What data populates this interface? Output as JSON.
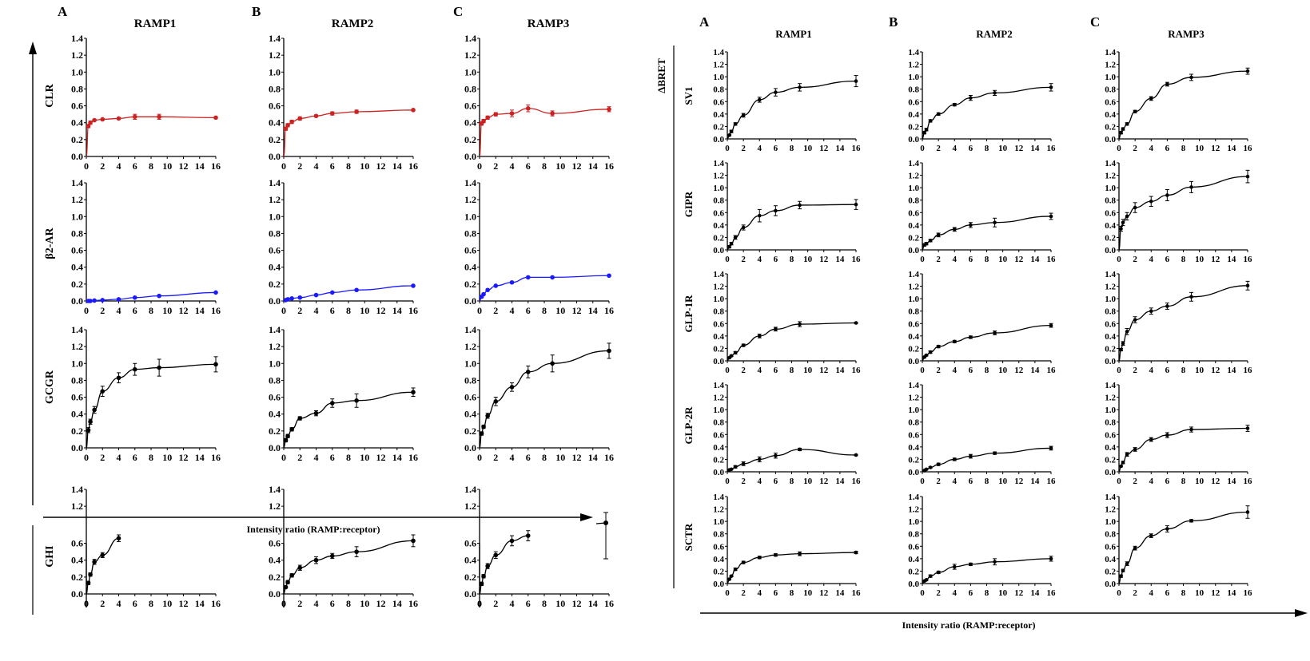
{
  "chart_data": [
    {
      "type": "line",
      "panel_letters": [
        "A",
        "B",
        "C"
      ],
      "columns": [
        "RAMP1",
        "RAMP2",
        "RAMP3"
      ],
      "rows": [
        "CLR",
        "β2-AR",
        "GCGR",
        "",
        "GHI"
      ],
      "xlabel": "Intensity ratio (RAMP:receptor)",
      "ylabel": "",
      "xlim": [
        0,
        16
      ],
      "ylim": [
        0,
        1.4
      ],
      "x_ticks": [
        0,
        2,
        4,
        6,
        8,
        10,
        12,
        14,
        16
      ],
      "y_ticks": [
        0.0,
        0.2,
        0.4,
        0.6,
        0.8,
        1.0,
        1.2,
        1.4
      ],
      "colors": {
        "CLR": "#cc2222",
        "β2-AR": "#1a1aff",
        "GCGR": "#000000",
        "GHI": "#000000"
      },
      "x": [
        0,
        0.25,
        0.5,
        1,
        2,
        4,
        6,
        9,
        16
      ],
      "panels": [
        {
          "row": "CLR",
          "col": "RAMP1",
          "values": [
            0,
            0.36,
            0.4,
            0.43,
            0.44,
            0.45,
            0.47,
            0.47,
            0.46
          ],
          "err": [
            0,
            0.02,
            0.02,
            0.01,
            0.01,
            0.01,
            0.03,
            0.03,
            0.01
          ]
        },
        {
          "row": "CLR",
          "col": "RAMP2",
          "values": [
            0,
            0.33,
            0.37,
            0.41,
            0.45,
            0.48,
            0.51,
            0.53,
            0.55
          ],
          "err": [
            0,
            0.02,
            0.02,
            0.02,
            0.02,
            0.01,
            0.02,
            0.02,
            0.01
          ]
        },
        {
          "row": "CLR",
          "col": "RAMP3",
          "values": [
            0,
            0.39,
            0.42,
            0.46,
            0.5,
            0.51,
            0.57,
            0.51,
            0.56
          ],
          "err": [
            0,
            0.02,
            0.02,
            0.02,
            0.02,
            0.04,
            0.04,
            0.03,
            0.03
          ]
        },
        {
          "row": "β2-AR",
          "col": "RAMP1",
          "values": [
            0,
            0.0,
            0.0,
            0.005,
            0.01,
            0.02,
            0.04,
            0.06,
            0.1
          ],
          "err": [
            0,
            0,
            0,
            0,
            0,
            0,
            0,
            0,
            0
          ]
        },
        {
          "row": "β2-AR",
          "col": "RAMP2",
          "values": [
            0,
            0.01,
            0.02,
            0.03,
            0.04,
            0.07,
            0.1,
            0.13,
            0.18
          ],
          "err": [
            0,
            0,
            0,
            0,
            0,
            0,
            0,
            0,
            0
          ]
        },
        {
          "row": "β2-AR",
          "col": "RAMP3",
          "values": [
            0,
            0.05,
            0.08,
            0.13,
            0.18,
            0.22,
            0.28,
            0.28,
            0.3
          ],
          "err": [
            0,
            0,
            0,
            0,
            0,
            0,
            0,
            0,
            0
          ]
        },
        {
          "row": "GCGR",
          "col": "RAMP1",
          "values": [
            0,
            0.21,
            0.31,
            0.45,
            0.67,
            0.83,
            0.93,
            0.95,
            0.99
          ],
          "err": [
            0,
            0.03,
            0.03,
            0.04,
            0.06,
            0.06,
            0.07,
            0.1,
            0.09
          ]
        },
        {
          "row": "GCGR",
          "col": "RAMP2",
          "values": [
            0,
            0.09,
            0.14,
            0.22,
            0.35,
            0.41,
            0.53,
            0.56,
            0.66
          ],
          "err": [
            0,
            0.02,
            0.02,
            0.02,
            0.02,
            0.03,
            0.05,
            0.08,
            0.05
          ]
        },
        {
          "row": "GCGR",
          "col": "RAMP3",
          "values": [
            0,
            0.17,
            0.25,
            0.38,
            0.55,
            0.72,
            0.9,
            1.0,
            1.15
          ],
          "err": [
            0,
            0.02,
            0.02,
            0.03,
            0.05,
            0.05,
            0.07,
            0.1,
            0.09
          ]
        },
        {
          "row": "GHI",
          "col": "RAMP1",
          "values": [
            0,
            0.13,
            0.23,
            0.38,
            0.46,
            0.66
          ],
          "x": [
            0,
            0.25,
            0.5,
            1,
            2,
            4
          ],
          "err": [
            0,
            0.02,
            0.02,
            0.03,
            0.03,
            0.04
          ]
        },
        {
          "row": "GHI",
          "col": "RAMP2",
          "values": [
            0,
            0.08,
            0.14,
            0.22,
            0.31,
            0.4,
            0.45,
            0.5,
            0.63
          ],
          "err": [
            0,
            0.01,
            0.02,
            0.02,
            0.03,
            0.04,
            0.03,
            0.06,
            0.07
          ]
        },
        {
          "row": "GHI",
          "col": "RAMP3",
          "values": [
            0,
            0.12,
            0.21,
            0.33,
            0.46,
            0.63,
            0.69
          ],
          "x": [
            0,
            0.25,
            0.5,
            1,
            2,
            4,
            6
          ],
          "err": [
            0,
            0.02,
            0.02,
            0.03,
            0.04,
            0.06,
            0.06
          ]
        }
      ]
    },
    {
      "type": "line",
      "panel_letters": [
        "A",
        "B",
        "C"
      ],
      "columns": [
        "RAMP1",
        "RAMP2",
        "RAMP3"
      ],
      "rows": [
        "SV1",
        "GIPR",
        "GLP-1R",
        "GLP-2R",
        "SCTR"
      ],
      "ylabel": "ΔBRET",
      "xlabel": "Intensity ratio (RAMP:receptor)",
      "xlim": [
        0,
        16
      ],
      "ylim": [
        0,
        1.4
      ],
      "x_ticks": [
        0,
        2,
        4,
        6,
        8,
        10,
        12,
        14,
        16
      ],
      "y_ticks": [
        0.0,
        0.2,
        0.4,
        0.6,
        0.8,
        1.0,
        1.2,
        1.4
      ],
      "x": [
        0,
        0.25,
        0.5,
        1,
        2,
        4,
        6,
        9,
        16
      ],
      "panels": [
        {
          "row": "SV1",
          "col": "RAMP1",
          "values": [
            0,
            0.06,
            0.12,
            0.24,
            0.38,
            0.63,
            0.75,
            0.83,
            0.93
          ],
          "err": [
            0,
            0.01,
            0.02,
            0.02,
            0.03,
            0.04,
            0.06,
            0.06,
            0.09
          ]
        },
        {
          "row": "SV1",
          "col": "RAMP2",
          "values": [
            0,
            0.1,
            0.15,
            0.29,
            0.4,
            0.55,
            0.66,
            0.74,
            0.83
          ],
          "err": [
            0,
            0.02,
            0.02,
            0.02,
            0.02,
            0.02,
            0.04,
            0.04,
            0.06
          ]
        },
        {
          "row": "SV1",
          "col": "RAMP3",
          "values": [
            0,
            0.1,
            0.16,
            0.24,
            0.44,
            0.65,
            0.88,
            0.99,
            1.09
          ],
          "err": [
            0,
            0.02,
            0.02,
            0.02,
            0.02,
            0.03,
            0.03,
            0.05,
            0.05
          ]
        },
        {
          "row": "GIPR",
          "col": "RAMP1",
          "values": [
            0,
            0.05,
            0.1,
            0.2,
            0.36,
            0.55,
            0.63,
            0.72,
            0.73
          ],
          "err": [
            0,
            0.02,
            0.02,
            0.03,
            0.04,
            0.1,
            0.08,
            0.06,
            0.08
          ]
        },
        {
          "row": "GIPR",
          "col": "RAMP2",
          "values": [
            0,
            0.08,
            0.1,
            0.15,
            0.24,
            0.33,
            0.4,
            0.44,
            0.54
          ],
          "err": [
            0,
            0.02,
            0.02,
            0.02,
            0.03,
            0.03,
            0.04,
            0.07,
            0.05
          ]
        },
        {
          "row": "GIPR",
          "col": "RAMP3",
          "values": [
            0,
            0.34,
            0.44,
            0.54,
            0.68,
            0.78,
            0.88,
            1.01,
            1.18
          ],
          "err": [
            0,
            0.04,
            0.05,
            0.06,
            0.08,
            0.08,
            0.09,
            0.09,
            0.1
          ]
        },
        {
          "row": "GLP-1R",
          "col": "RAMP1",
          "values": [
            0,
            0.05,
            0.08,
            0.13,
            0.25,
            0.4,
            0.51,
            0.59,
            0.61
          ],
          "err": [
            0,
            0.01,
            0.01,
            0.02,
            0.02,
            0.03,
            0.03,
            0.04,
            0.01
          ]
        },
        {
          "row": "GLP-1R",
          "col": "RAMP2",
          "values": [
            0,
            0.06,
            0.09,
            0.14,
            0.23,
            0.31,
            0.38,
            0.45,
            0.57
          ],
          "err": [
            0,
            0.01,
            0.01,
            0.02,
            0.02,
            0.02,
            0.02,
            0.03,
            0.03
          ]
        },
        {
          "row": "GLP-1R",
          "col": "RAMP3",
          "values": [
            0,
            0.18,
            0.28,
            0.47,
            0.66,
            0.8,
            0.88,
            1.03,
            1.21
          ],
          "err": [
            0,
            0.02,
            0.03,
            0.05,
            0.05,
            0.05,
            0.05,
            0.07,
            0.07
          ]
        },
        {
          "row": "GLP-2R",
          "col": "RAMP1",
          "values": [
            0,
            0.03,
            0.04,
            0.08,
            0.13,
            0.2,
            0.26,
            0.36,
            0.27
          ],
          "err": [
            0,
            0.01,
            0.01,
            0.02,
            0.03,
            0.04,
            0.04,
            0.02,
            0.01
          ]
        },
        {
          "row": "GLP-2R",
          "col": "RAMP2",
          "values": [
            0,
            0.02,
            0.04,
            0.07,
            0.12,
            0.2,
            0.25,
            0.3,
            0.38
          ],
          "err": [
            0,
            0.01,
            0.01,
            0.01,
            0.02,
            0.02,
            0.03,
            0.02,
            0.03
          ]
        },
        {
          "row": "GLP-2R",
          "col": "RAMP3",
          "values": [
            0,
            0.09,
            0.15,
            0.28,
            0.36,
            0.52,
            0.59,
            0.68,
            0.7
          ],
          "err": [
            0,
            0.01,
            0.02,
            0.03,
            0.03,
            0.03,
            0.04,
            0.04,
            0.05
          ]
        },
        {
          "row": "SCTR",
          "col": "RAMP1",
          "values": [
            0,
            0.07,
            0.12,
            0.23,
            0.34,
            0.42,
            0.46,
            0.48,
            0.5
          ],
          "err": [
            0,
            0.01,
            0.01,
            0.02,
            0.02,
            0.02,
            0.02,
            0.03,
            0.02
          ]
        },
        {
          "row": "SCTR",
          "col": "RAMP2",
          "values": [
            0,
            0.04,
            0.06,
            0.12,
            0.18,
            0.27,
            0.31,
            0.35,
            0.4
          ],
          "err": [
            0,
            0.01,
            0.01,
            0.02,
            0.02,
            0.04,
            0.02,
            0.05,
            0.04
          ]
        },
        {
          "row": "SCTR",
          "col": "RAMP3",
          "values": [
            0,
            0.12,
            0.21,
            0.32,
            0.57,
            0.77,
            0.88,
            1.01,
            1.15
          ],
          "err": [
            0,
            0.02,
            0.02,
            0.03,
            0.03,
            0.03,
            0.05,
            0.02,
            0.1
          ]
        }
      ]
    }
  ]
}
